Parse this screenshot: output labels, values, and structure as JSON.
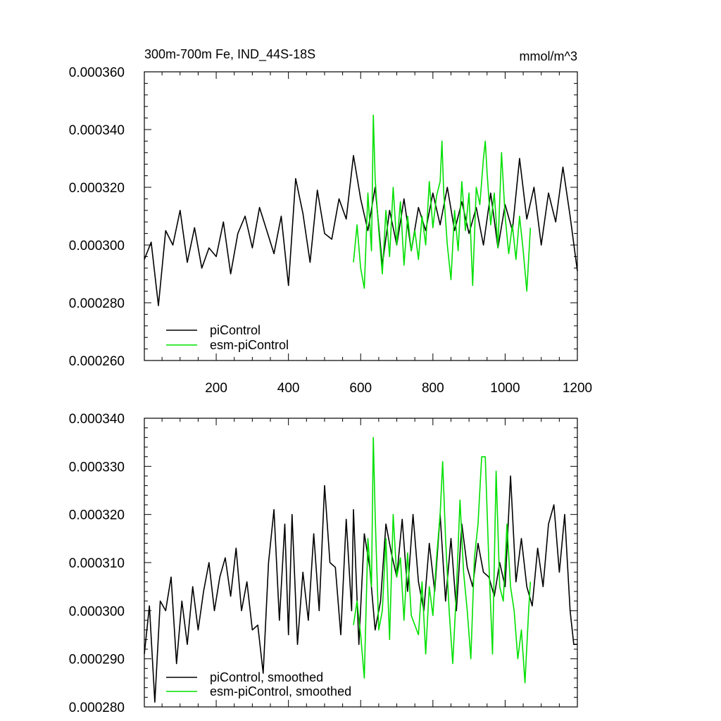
{
  "colors": {
    "picontrol": "#000000",
    "esm_picontrol": "#00e000",
    "axis": "#000000",
    "background": "#ffffff"
  },
  "chart_data": [
    {
      "type": "line",
      "title": "300m-700m Fe, IND_44S-18S",
      "units": "mmol/m^3",
      "xlabel": "",
      "ylabel": "",
      "xlim": [
        1,
        1200
      ],
      "ylim": [
        0.00026,
        0.00036
      ],
      "xticks": [
        200,
        400,
        600,
        800,
        1000,
        1200
      ],
      "xtick_labels": [
        "200",
        "400",
        "600",
        "800",
        "1000",
        "1200"
      ],
      "yticks": [
        0.00026,
        0.00028,
        0.0003,
        0.00032,
        0.00034,
        0.00036
      ],
      "ytick_labels": [
        "0.000260",
        "0.000280",
        "0.000300",
        "0.000320",
        "0.000340",
        "0.000360"
      ],
      "grid": false,
      "legend_position": "bottom-left",
      "series": [
        {
          "name": "piControl",
          "color_key": "picontrol",
          "x": [
            1,
            20,
            40,
            60,
            80,
            100,
            120,
            140,
            160,
            180,
            200,
            220,
            240,
            260,
            280,
            300,
            320,
            340,
            360,
            380,
            400,
            420,
            440,
            460,
            480,
            500,
            520,
            540,
            560,
            580,
            600,
            620,
            640,
            660,
            680,
            700,
            720,
            740,
            760,
            780,
            800,
            820,
            840,
            860,
            880,
            900,
            920,
            940,
            960,
            980,
            1000,
            1020,
            1040,
            1060,
            1080,
            1100,
            1120,
            1140,
            1160,
            1180,
            1200
          ],
          "values": [
            0.000295,
            0.000301,
            0.000279,
            0.000305,
            0.0003,
            0.000312,
            0.000294,
            0.000306,
            0.000292,
            0.000299,
            0.000296,
            0.000308,
            0.00029,
            0.000304,
            0.00031,
            0.000299,
            0.000313,
            0.000305,
            0.000297,
            0.00031,
            0.000286,
            0.000323,
            0.000311,
            0.000294,
            0.000319,
            0.000304,
            0.000302,
            0.000316,
            0.000309,
            0.000331,
            0.000316,
            0.000305,
            0.00032,
            0.000293,
            0.000312,
            0.0003,
            0.000316,
            0.000298,
            0.000313,
            0.000305,
            0.000318,
            0.000307,
            0.00032,
            0.000305,
            0.000315,
            0.000304,
            0.000313,
            0.0003,
            0.000318,
            0.000299,
            0.000314,
            0.000305,
            0.00033,
            0.000309,
            0.00032,
            0.0003,
            0.000318,
            0.000308,
            0.000327,
            0.00031,
            0.000291
          ]
        },
        {
          "name": "esm-piControl",
          "color_key": "esm_picontrol",
          "x": [
            580,
            590,
            600,
            610,
            620,
            630,
            635,
            640,
            650,
            660,
            670,
            680,
            690,
            700,
            710,
            720,
            730,
            740,
            750,
            760,
            770,
            780,
            790,
            800,
            810,
            820,
            825,
            830,
            840,
            850,
            860,
            870,
            880,
            890,
            900,
            910,
            920,
            930,
            940,
            945,
            950,
            960,
            970,
            980,
            990,
            1000,
            1010,
            1020,
            1030,
            1040,
            1050,
            1060,
            1070
          ],
          "values": [
            0.000294,
            0.000307,
            0.000292,
            0.000285,
            0.000318,
            0.000298,
            0.000345,
            0.000323,
            0.000305,
            0.00029,
            0.000312,
            0.000296,
            0.00032,
            0.0003,
            0.000315,
            0.000293,
            0.00031,
            0.000298,
            0.000305,
            0.000295,
            0.00031,
            0.0003,
            0.000322,
            0.000306,
            0.000317,
            0.000322,
            0.000336,
            0.000318,
            0.0003,
            0.000288,
            0.000312,
            0.000298,
            0.000322,
            0.000305,
            0.000318,
            0.000286,
            0.00032,
            0.000314,
            0.00033,
            0.000336,
            0.000325,
            0.000307,
            0.000318,
            0.000299,
            0.000332,
            0.00031,
            0.000297,
            0.000307,
            0.000295,
            0.00031,
            0.000298,
            0.000284,
            0.000306
          ]
        }
      ],
      "legend": [
        "piControl",
        "esm-piControl"
      ]
    },
    {
      "type": "line",
      "title": "",
      "xlabel": "",
      "ylabel": "",
      "xlim": [
        1,
        1200
      ],
      "ylim": [
        0.00028,
        0.00034
      ],
      "xticks": [
        200,
        400,
        600,
        800,
        1000,
        1200
      ],
      "yticks": [
        0.00028,
        0.00029,
        0.0003,
        0.00031,
        0.00032,
        0.00033,
        0.00034
      ],
      "ytick_labels": [
        "0.000280",
        "0.000290",
        "0.000300",
        "0.000310",
        "0.000320",
        "0.000330",
        "0.000340"
      ],
      "grid": false,
      "legend_position": "bottom-left",
      "series": [
        {
          "name": "piControl, smoothed",
          "color_key": "picontrol",
          "x": [
            1,
            15,
            30,
            45,
            60,
            75,
            90,
            105,
            120,
            135,
            150,
            165,
            180,
            195,
            210,
            225,
            240,
            255,
            270,
            285,
            300,
            315,
            330,
            345,
            360,
            375,
            390,
            400,
            410,
            425,
            440,
            455,
            470,
            485,
            500,
            515,
            530,
            545,
            560,
            575,
            580,
            595,
            610,
            625,
            640,
            655,
            670,
            685,
            700,
            715,
            730,
            745,
            760,
            775,
            790,
            805,
            820,
            835,
            850,
            865,
            880,
            895,
            910,
            925,
            940,
            955,
            970,
            985,
            1000,
            1015,
            1030,
            1045,
            1060,
            1075,
            1090,
            1105,
            1120,
            1135,
            1150,
            1165,
            1180,
            1190,
            1200
          ],
          "values": [
            0.000291,
            0.000301,
            0.000281,
            0.000302,
            0.0003,
            0.000307,
            0.000289,
            0.000302,
            0.000293,
            0.000305,
            0.000296,
            0.000304,
            0.00031,
            0.0003,
            0.000307,
            0.000311,
            0.000303,
            0.000313,
            0.0003,
            0.000306,
            0.000296,
            0.000297,
            0.000287,
            0.00031,
            0.000321,
            0.000298,
            0.000318,
            0.000295,
            0.00032,
            0.000293,
            0.000308,
            0.000298,
            0.000316,
            0.0003,
            0.000326,
            0.00031,
            0.000309,
            0.000295,
            0.000319,
            0.0003,
            0.000321,
            0.000293,
            0.000316,
            0.000309,
            0.000296,
            0.000302,
            0.000318,
            0.000312,
            0.000307,
            0.000319,
            0.000304,
            0.00032,
            0.000306,
            0.0003,
            0.000314,
            0.000304,
            0.00032,
            0.000302,
            0.000315,
            0.0003,
            0.000318,
            0.000309,
            0.000305,
            0.000314,
            0.000308,
            0.000307,
            0.000303,
            0.00031,
            0.000305,
            0.000328,
            0.000306,
            0.000315,
            0.000305,
            0.000301,
            0.000313,
            0.000305,
            0.000318,
            0.000322,
            0.000308,
            0.00032,
            0.0003,
            0.000293,
            0.000293
          ]
        },
        {
          "name": "esm-piControl, smoothed",
          "color_key": "esm_picontrol",
          "x": [
            580,
            590,
            600,
            610,
            620,
            630,
            635,
            640,
            650,
            660,
            670,
            680,
            690,
            700,
            710,
            720,
            730,
            740,
            750,
            760,
            770,
            780,
            790,
            800,
            810,
            820,
            827,
            835,
            845,
            855,
            865,
            875,
            885,
            895,
            905,
            915,
            925,
            935,
            945,
            955,
            965,
            975,
            985,
            995,
            1005,
            1015,
            1025,
            1035,
            1045,
            1055,
            1065,
            1070
          ],
          "values": [
            0.000297,
            0.000302,
            0.000295,
            0.000286,
            0.000315,
            0.000305,
            0.000336,
            0.00032,
            0.000296,
            0.0003,
            0.000315,
            0.000294,
            0.00032,
            0.000307,
            0.000311,
            0.000298,
            0.000312,
            0.000299,
            0.000297,
            0.000295,
            0.000306,
            0.000291,
            0.000305,
            0.000299,
            0.000311,
            0.00032,
            0.000331,
            0.000315,
            0.0003,
            0.000289,
            0.000304,
            0.000323,
            0.000308,
            0.0003,
            0.00029,
            0.000311,
            0.000318,
            0.000332,
            0.000332,
            0.00031,
            0.000291,
            0.000329,
            0.000305,
            0.000302,
            0.000318,
            0.000305,
            0.0003,
            0.00029,
            0.000296,
            0.000285,
            0.0003,
            0.000306
          ]
        }
      ],
      "legend": [
        "piControl, smoothed",
        "esm-piControl, smoothed"
      ]
    }
  ]
}
